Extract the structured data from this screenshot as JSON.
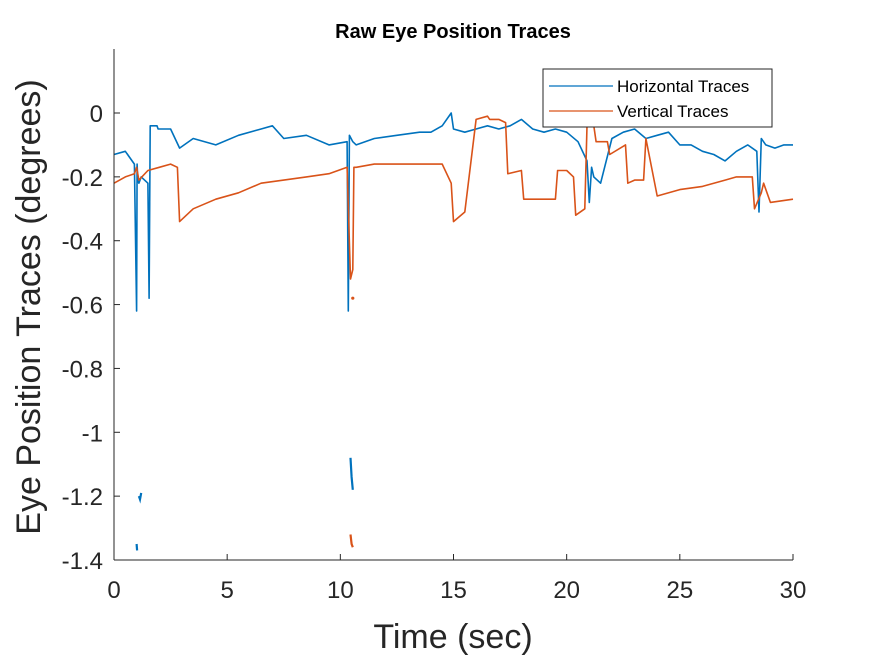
{
  "chart_data": {
    "type": "line",
    "title": "Raw Eye Position Traces",
    "xlabel": "Time (sec)",
    "ylabel": "Eye Position Traces (degrees)",
    "xlim": [
      0,
      30
    ],
    "ylim": [
      -1.4,
      0.2
    ],
    "xticks": [
      0,
      5,
      10,
      15,
      20,
      25,
      30
    ],
    "xtick_labels": [
      "0",
      "5",
      "10",
      "15",
      "20",
      "25",
      "30"
    ],
    "yticks": [
      0,
      -0.2,
      -0.4,
      -0.6,
      -0.8,
      -1,
      -1.2,
      -1.4
    ],
    "ytick_labels": [
      "0",
      "-0.2",
      "-0.4",
      "-0.6",
      "-0.8",
      "-1",
      "-1.2",
      "-1.4"
    ],
    "grid": false,
    "legend_position": "top-right",
    "series": [
      {
        "name": "Horizontal Traces",
        "color": "#0072BD",
        "x": [
          0,
          0.5,
          0.9,
          1.0,
          1.02,
          1.05,
          1.1,
          1.2,
          1.5,
          1.55,
          1.6,
          1.9,
          1.95,
          2.5,
          2.9,
          3.5,
          4.5,
          5.5,
          6.5,
          7.0,
          7.5,
          8.5,
          9.5,
          10.3,
          10.35,
          10.4,
          10.55,
          10.7,
          11.5,
          12.5,
          13.5,
          14.0,
          14.5,
          14.9,
          15.0,
          15.5,
          16.0,
          16.5,
          17.0,
          17.5,
          18.0,
          18.5,
          19.0,
          19.5,
          20.0,
          20.5,
          20.9,
          21.0,
          21.1,
          21.2,
          21.5,
          22.0,
          22.5,
          23.0,
          23.5,
          24.0,
          24.5,
          25.0,
          25.5,
          26.0,
          26.5,
          27.0,
          27.5,
          28.0,
          28.4,
          28.5,
          28.6,
          28.8,
          29.2,
          29.6,
          30.0
        ],
        "y": [
          -0.13,
          -0.12,
          -0.16,
          -0.62,
          -0.16,
          -0.21,
          -0.22,
          -0.2,
          -0.22,
          -0.58,
          -0.04,
          -0.04,
          -0.05,
          -0.05,
          -0.11,
          -0.08,
          -0.1,
          -0.07,
          -0.05,
          -0.04,
          -0.08,
          -0.07,
          -0.1,
          -0.09,
          -0.62,
          -0.07,
          -0.09,
          -0.1,
          -0.08,
          -0.07,
          -0.06,
          -0.06,
          -0.04,
          0.0,
          -0.05,
          -0.06,
          -0.05,
          -0.04,
          -0.05,
          -0.04,
          -0.02,
          -0.05,
          -0.06,
          -0.05,
          -0.06,
          -0.09,
          -0.15,
          -0.28,
          -0.17,
          -0.2,
          -0.22,
          -0.08,
          -0.06,
          -0.05,
          -0.08,
          -0.07,
          -0.06,
          -0.1,
          -0.1,
          -0.12,
          -0.13,
          -0.15,
          -0.12,
          -0.1,
          -0.12,
          -0.31,
          -0.08,
          -0.1,
          -0.11,
          -0.1,
          -0.1
        ]
      },
      {
        "name": "Vertical Traces",
        "color": "#D95319",
        "x": [
          0,
          0.5,
          0.9,
          1.0,
          1.1,
          1.5,
          2.0,
          2.5,
          2.8,
          2.9,
          3.5,
          4.5,
          5.5,
          6.5,
          7.5,
          8.5,
          9.5,
          10.3,
          10.45,
          10.55,
          10.6,
          10.7,
          11.5,
          12.5,
          13.5,
          14.5,
          14.9,
          15.0,
          15.5,
          16.0,
          16.5,
          16.6,
          17.0,
          17.3,
          17.4,
          18.0,
          18.1,
          19.0,
          19.5,
          19.6,
          20.0,
          20.3,
          20.4,
          20.8,
          20.9,
          21.2,
          21.3,
          21.8,
          21.9,
          22.6,
          22.7,
          23.0,
          23.4,
          23.5,
          24.0,
          25.0,
          26.0,
          27.0,
          27.5,
          28.2,
          28.3,
          28.6,
          28.7,
          29.0,
          30.0
        ],
        "y": [
          -0.22,
          -0.2,
          -0.19,
          -0.17,
          -0.21,
          -0.18,
          -0.17,
          -0.16,
          -0.17,
          -0.34,
          -0.3,
          -0.27,
          -0.25,
          -0.22,
          -0.21,
          -0.2,
          -0.19,
          -0.17,
          -0.52,
          -0.49,
          -0.17,
          -0.17,
          -0.16,
          -0.16,
          -0.16,
          -0.16,
          -0.22,
          -0.34,
          -0.31,
          -0.02,
          -0.01,
          -0.02,
          -0.02,
          -0.03,
          -0.19,
          -0.18,
          -0.27,
          -0.27,
          -0.27,
          -0.18,
          -0.18,
          -0.2,
          -0.32,
          -0.3,
          -0.04,
          -0.04,
          -0.09,
          -0.09,
          -0.13,
          -0.1,
          -0.22,
          -0.21,
          -0.21,
          -0.08,
          -0.26,
          -0.24,
          -0.23,
          -0.21,
          -0.2,
          -0.2,
          -0.3,
          -0.25,
          -0.22,
          -0.28,
          -0.27
        ]
      }
    ],
    "outliers": [
      {
        "series": "Horizontal Traces",
        "x": [
          1.1,
          1.15,
          1.2
        ],
        "y": [
          -1.2,
          -1.21,
          -1.19
        ]
      },
      {
        "series": "Horizontal Traces",
        "x": [
          1.0,
          1.02
        ],
        "y": [
          -1.35,
          -1.37
        ]
      },
      {
        "series": "Horizontal Traces",
        "x": [
          10.45,
          10.5,
          10.55
        ],
        "y": [
          -1.08,
          -1.14,
          -1.18
        ]
      },
      {
        "series": "Vertical Traces",
        "x": [
          10.45,
          10.5,
          10.55
        ],
        "y": [
          -1.32,
          -1.35,
          -1.36
        ]
      },
      {
        "series": "Vertical Traces",
        "x": [
          10.55
        ],
        "y": [
          -0.58
        ]
      }
    ]
  }
}
